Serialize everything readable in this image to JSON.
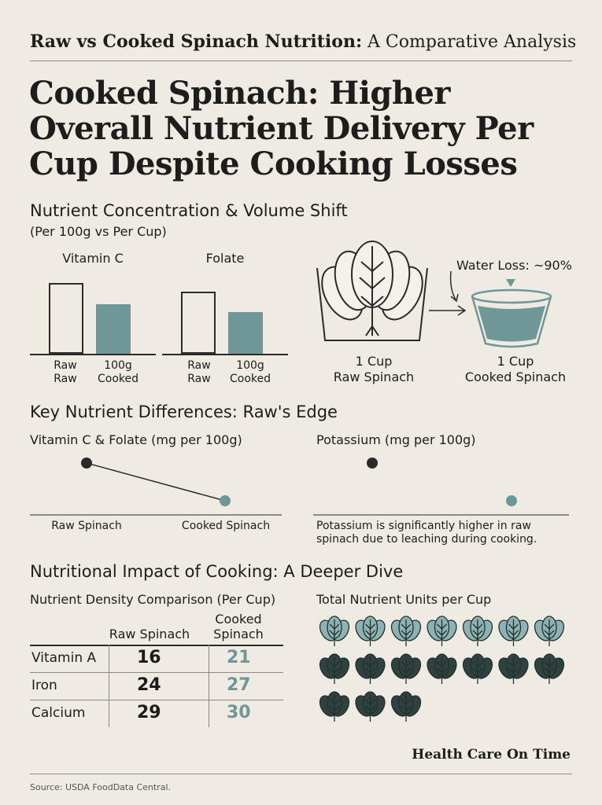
{
  "header": {
    "title_bold": "Raw vs Cooked Spinach Nutrition:",
    "title_rest": " A Comparative Analysis",
    "headline": "Cooked Spinach: Higher Overall Nutrient Delivery Per Cup Despite Cooking Losses"
  },
  "section1": {
    "title": "Nutrient Concentration & Volume Shift",
    "subtitle": "(Per 100g vs Per Cup)",
    "volume": {
      "water_loss_label": "Water Loss: ~90%",
      "raw_label_line1": "1 Cup",
      "raw_label_line2": "Raw Spinach",
      "cooked_label_line1": "1 Cup",
      "cooked_label_line2": "Cooked Spinach"
    }
  },
  "section2": {
    "title": "Key Nutrient Differences: Raw's Edge",
    "note": "Potassium is significantly higher in raw spinach due to leaching during cooking."
  },
  "section3": {
    "title": "Nutritional Impact of Cooking: A Deeper Dive",
    "table": {
      "title": "Nutrient Density Comparison (Per Cup)",
      "col_raw": "Raw Spinach",
      "col_cooked_line1": "Cooked",
      "col_cooked_line2": "Spinach",
      "rows": [
        {
          "nutrient": "Vitamin A",
          "raw": 16,
          "cooked": 21
        },
        {
          "nutrient": "Iron",
          "raw": 24,
          "cooked": 27
        },
        {
          "nutrient": "Calcium",
          "raw": 29,
          "cooked": 30
        }
      ]
    },
    "units_title": "Total Nutrient Units per Cup"
  },
  "chart_data": [
    {
      "type": "bar",
      "title": "Vitamin C",
      "categories": [
        "Raw\nRaw",
        "100g\nCooked"
      ],
      "cat_line1": [
        "Raw",
        "100g"
      ],
      "cat_line2": [
        "Raw",
        "Cooked"
      ],
      "values": [
        1.0,
        0.7
      ],
      "ylim": [
        0,
        1.1
      ]
    },
    {
      "type": "bar",
      "title": "Folate",
      "categories": [
        "Raw\nRaw",
        "100g\nCooked"
      ],
      "cat_line1": [
        "Raw",
        "100g"
      ],
      "cat_line2": [
        "Raw",
        "Cooked"
      ],
      "values": [
        0.88,
        0.59
      ],
      "ylim": [
        0,
        1.1
      ]
    },
    {
      "type": "line",
      "title": "Vitamin C & Folate (mg per 100g)",
      "categories": [
        "Raw Spinach",
        "Cooked Spinach"
      ],
      "values": [
        1.0,
        0.0
      ],
      "ylim": [
        0,
        1
      ]
    },
    {
      "type": "scatter",
      "title": "Potassium (mg per 100g)",
      "values": [
        1.0,
        0.0
      ],
      "ylim": [
        0,
        1
      ]
    },
    {
      "type": "pictograph",
      "title": "Total Nutrient Units per Cup",
      "icons": {
        "light": 7,
        "dark": 10
      },
      "light_color": "#8db2b3",
      "dark_color": "#2f4240"
    }
  ],
  "footer": {
    "brand": "Health Care On Time",
    "source": "Source: USDA FoodData Central."
  },
  "colors": {
    "background": "#efebe2",
    "teal": "#6f9798",
    "dark": "#2a2a2a"
  }
}
